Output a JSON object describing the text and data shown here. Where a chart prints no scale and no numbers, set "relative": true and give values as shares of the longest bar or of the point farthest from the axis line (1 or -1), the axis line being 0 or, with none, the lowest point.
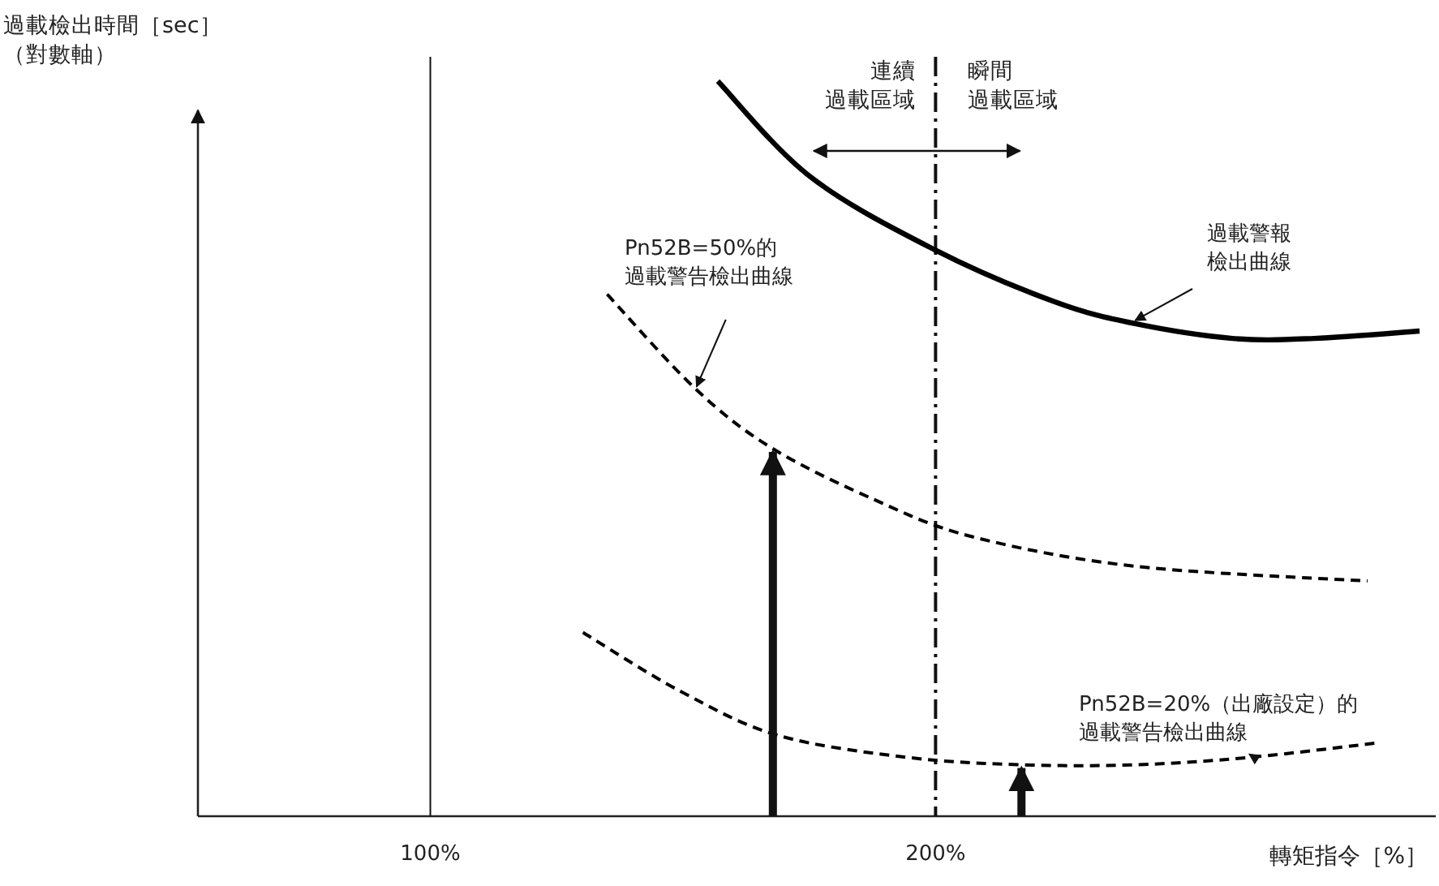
{
  "chart_data": {
    "type": "line",
    "relative": true,
    "xlabel": "轉矩指令［%］",
    "ylabel": "過載檢出時間［sec］（對數軸）",
    "xlim": [
      54,
      299
    ],
    "xticks": [
      {
        "value": 100,
        "label": "100%"
      },
      {
        "value": 200,
        "label": "200%"
      }
    ],
    "marker": "none",
    "series": [
      {
        "name": "過載警報檢出曲線",
        "color": "#000000",
        "line_style": "solid",
        "x": [
          156.9,
          175.2,
          200,
          223.5,
          239.5,
          258.8,
          274.9,
          295.8
        ],
        "values": [
          1.0,
          0.87,
          0.77,
          0.7,
          0.67,
          0.65,
          0.65,
          0.66
        ]
      },
      {
        "name": "Pn52B=50%的過載警告檢出曲線",
        "color": "#000000",
        "line_style": "dashed",
        "x": [
          135.0,
          152.7,
          167.8,
          188.1,
          207.4,
          239.5,
          285.5
        ],
        "values": [
          0.71,
          0.58,
          0.5,
          0.43,
          0.38,
          0.34,
          0.32
        ]
      },
      {
        "name": "Pn52B=20%（出廠設定）的過載警告檢出曲線",
        "color": "#000000",
        "line_style": "dashed",
        "x": [
          130.2,
          149.5,
          168.8,
          194.5,
          217.0,
          239.5,
          262.1,
          287.8
        ],
        "values": [
          0.25,
          0.17,
          0.11,
          0.08,
          0.07,
          0.07,
          0.08,
          0.1
        ]
      }
    ],
    "ref_lines": [
      {
        "axis": "x",
        "value": 100,
        "line_style": "solid"
      },
      {
        "axis": "x",
        "value": 200,
        "line_style": "dashed"
      }
    ],
    "annotations": [
      "連續過載區域",
      "瞬間過載區域"
    ]
  }
}
